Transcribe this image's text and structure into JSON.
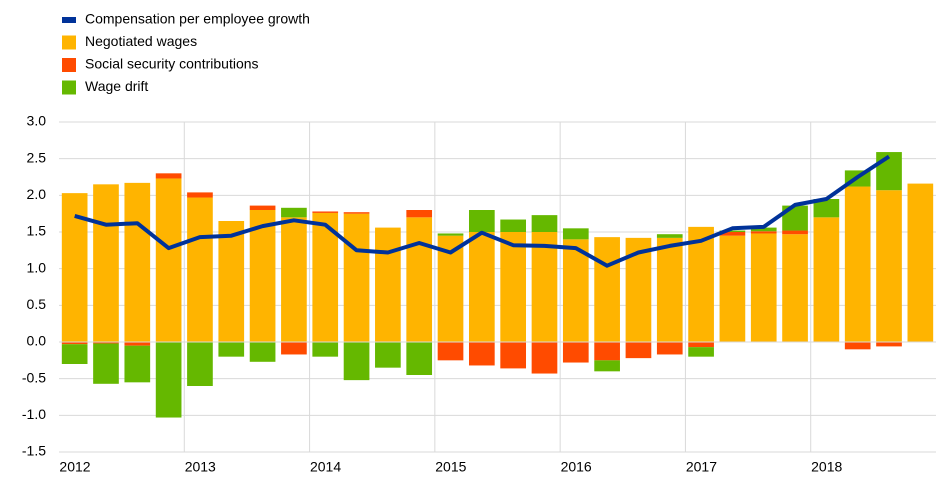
{
  "chart_data": {
    "type": "bar",
    "categories": [
      "2012",
      null,
      null,
      null,
      "2013",
      null,
      null,
      null,
      "2014",
      null,
      null,
      null,
      "2015",
      null,
      null,
      null,
      "2016",
      null,
      null,
      null,
      "2017",
      null,
      null,
      null,
      "2018",
      null,
      null,
      null
    ],
    "series": [
      {
        "name": "Compensation per employee growth",
        "color": "#003299",
        "type": "line",
        "values": [
          1.72,
          1.6,
          1.62,
          1.28,
          1.43,
          1.45,
          1.58,
          1.66,
          1.6,
          1.25,
          1.22,
          1.35,
          1.22,
          1.49,
          1.32,
          1.31,
          1.28,
          1.04,
          1.22,
          1.31,
          1.38,
          1.55,
          1.57,
          1.87,
          1.95,
          2.25,
          2.53,
          null
        ]
      },
      {
        "name": "Negotiated wages",
        "color": "#ffb400",
        "type": "bar",
        "values": [
          2.03,
          2.15,
          2.17,
          2.23,
          1.97,
          1.65,
          1.8,
          1.7,
          1.76,
          1.75,
          1.56,
          1.7,
          1.45,
          1.5,
          1.5,
          1.5,
          1.4,
          1.43,
          1.42,
          1.42,
          1.57,
          1.45,
          1.48,
          1.47,
          1.7,
          2.12,
          2.07,
          2.16
        ]
      },
      {
        "name": "Social security contributions",
        "color": "#ff4b00",
        "type": "bar",
        "values": [
          -0.03,
          -0.02,
          -0.05,
          0.07,
          0.07,
          0,
          0.06,
          -0.17,
          0.02,
          0.02,
          0,
          0.1,
          -0.25,
          -0.32,
          -0.36,
          -0.43,
          -0.28,
          -0.25,
          -0.22,
          -0.17,
          -0.07,
          0.05,
          0.03,
          0.05,
          0,
          -0.1,
          -0.06,
          0
        ]
      },
      {
        "name": "Wage drift",
        "color": "#65b800",
        "type": "bar",
        "values": [
          -0.27,
          -0.55,
          -0.5,
          -1.03,
          -0.6,
          -0.2,
          -0.27,
          0.13,
          -0.2,
          -0.52,
          -0.35,
          -0.45,
          0.03,
          0.3,
          0.17,
          0.23,
          0.15,
          -0.15,
          0,
          0.05,
          -0.13,
          0.02,
          0.05,
          0.34,
          0.25,
          0.22,
          0.52,
          0
        ]
      }
    ],
    "ylim": [
      -1.5,
      3.0
    ],
    "yticks": [
      {
        "value": -1.5,
        "label": "-1.5"
      },
      {
        "value": -1,
        "label": "-1.0"
      },
      {
        "value": -0.5,
        "label": "-0.5"
      },
      {
        "value": 0,
        "label": "0.0"
      },
      {
        "value": 0.5,
        "label": "0.5"
      },
      {
        "value": 1,
        "label": "1.0"
      },
      {
        "value": 1.5,
        "label": "1.5"
      },
      {
        "value": 2,
        "label": "2.0"
      },
      {
        "value": 2.5,
        "label": "2.5"
      },
      {
        "value": 3,
        "label": "3.0"
      }
    ],
    "grid": true,
    "legend": "top-left"
  }
}
